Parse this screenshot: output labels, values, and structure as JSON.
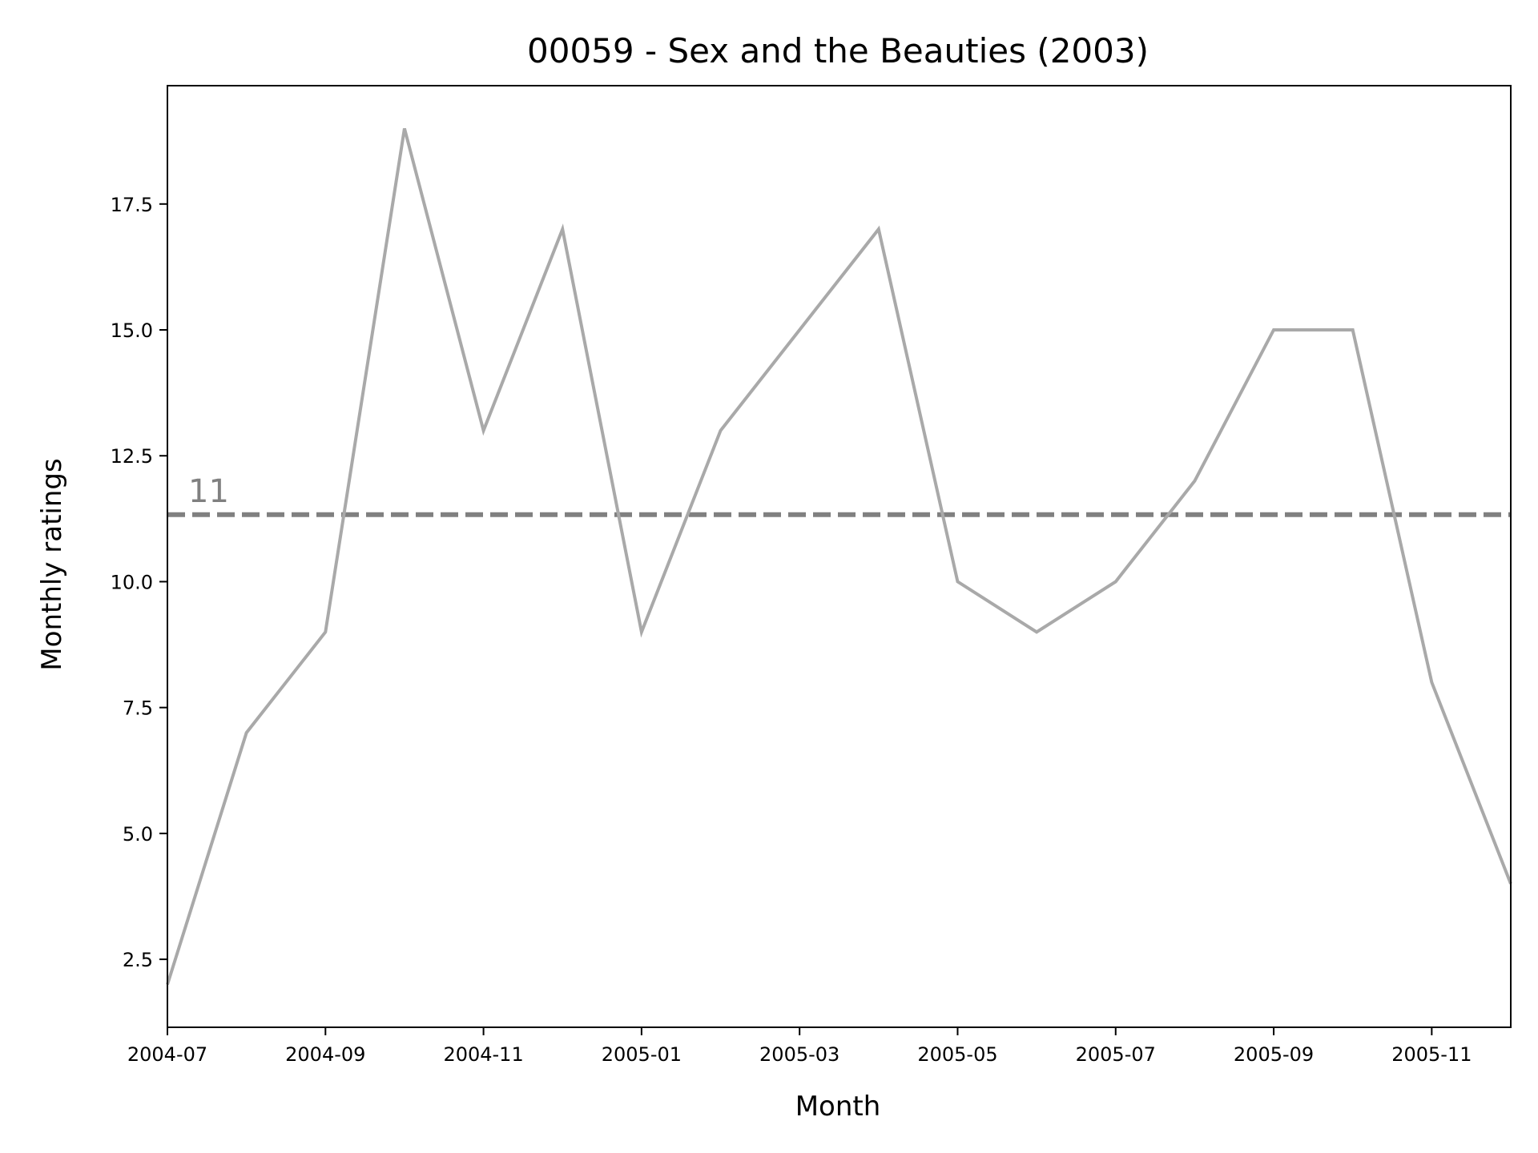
{
  "chart_data": {
    "type": "line",
    "title": "00059 - Sex and the Beauties (2003)",
    "xlabel": "Month",
    "ylabel": "Monthly ratings",
    "x": [
      "2004-07",
      "2004-08",
      "2004-09",
      "2004-10",
      "2004-11",
      "2004-12",
      "2005-01",
      "2005-02",
      "2005-03",
      "2005-04",
      "2005-05",
      "2005-06",
      "2005-07",
      "2005-08",
      "2005-09",
      "2005-10",
      "2005-11",
      "2005-12"
    ],
    "series": [
      {
        "values": [
          2,
          7,
          9,
          19,
          13,
          17,
          9,
          13,
          15,
          17,
          10,
          9,
          10,
          12,
          15,
          15,
          8,
          4
        ],
        "color": "#a9a9a9"
      }
    ],
    "mean_line": {
      "value": 11.33,
      "label": "11",
      "color": "#808080",
      "style": "dashed"
    },
    "x_ticks": [
      "2004-07",
      "2004-09",
      "2004-11",
      "2005-01",
      "2005-03",
      "2005-05",
      "2005-07",
      "2005-09",
      "2005-11"
    ],
    "y_ticks": [
      2.5,
      5.0,
      7.5,
      10.0,
      12.5,
      15.0,
      17.5
    ],
    "ylim": [
      1.15,
      19.85
    ],
    "xlim": [
      "2004-07",
      "2005-12"
    ],
    "grid": false,
    "legend": "none"
  }
}
